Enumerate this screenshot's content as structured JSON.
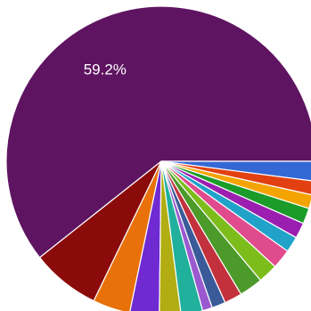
{
  "chart_data": {
    "type": "pie",
    "title": "",
    "legend": "none",
    "start_angle_deg": 0,
    "direction": "counterclockwise",
    "slices": [
      {
        "value": 59.2,
        "label": "59.2%",
        "color": "#5e1461"
      },
      {
        "value": 7.0,
        "label": "",
        "color": "#8b0a0a"
      },
      {
        "value": 3.8,
        "label": "",
        "color": "#e8710a"
      },
      {
        "value": 3.0,
        "label": "",
        "color": "#6f2ad2"
      },
      {
        "value": 2.2,
        "label": "",
        "color": "#b2ad12"
      },
      {
        "value": 2.2,
        "label": "",
        "color": "#20b09c"
      },
      {
        "value": 1.0,
        "label": "",
        "color": "#9b59d0"
      },
      {
        "value": 1.4,
        "label": "",
        "color": "#3a5a99"
      },
      {
        "value": 1.8,
        "label": "",
        "color": "#c3313c"
      },
      {
        "value": 2.4,
        "label": "",
        "color": "#4c9a2a"
      },
      {
        "value": 2.0,
        "label": "",
        "color": "#7cbd1c"
      },
      {
        "value": 2.0,
        "label": "",
        "color": "#e04b8d"
      },
      {
        "value": 1.6,
        "label": "",
        "color": "#20a2c9"
      },
      {
        "value": 1.6,
        "label": "",
        "color": "#9b1eb0"
      },
      {
        "value": 1.6,
        "label": "",
        "color": "#1a9b2a"
      },
      {
        "value": 1.4,
        "label": "",
        "color": "#f4a400"
      },
      {
        "value": 1.4,
        "label": "",
        "color": "#e24011"
      },
      {
        "value": 2.0,
        "label": "",
        "color": "#3468d4"
      }
    ]
  }
}
